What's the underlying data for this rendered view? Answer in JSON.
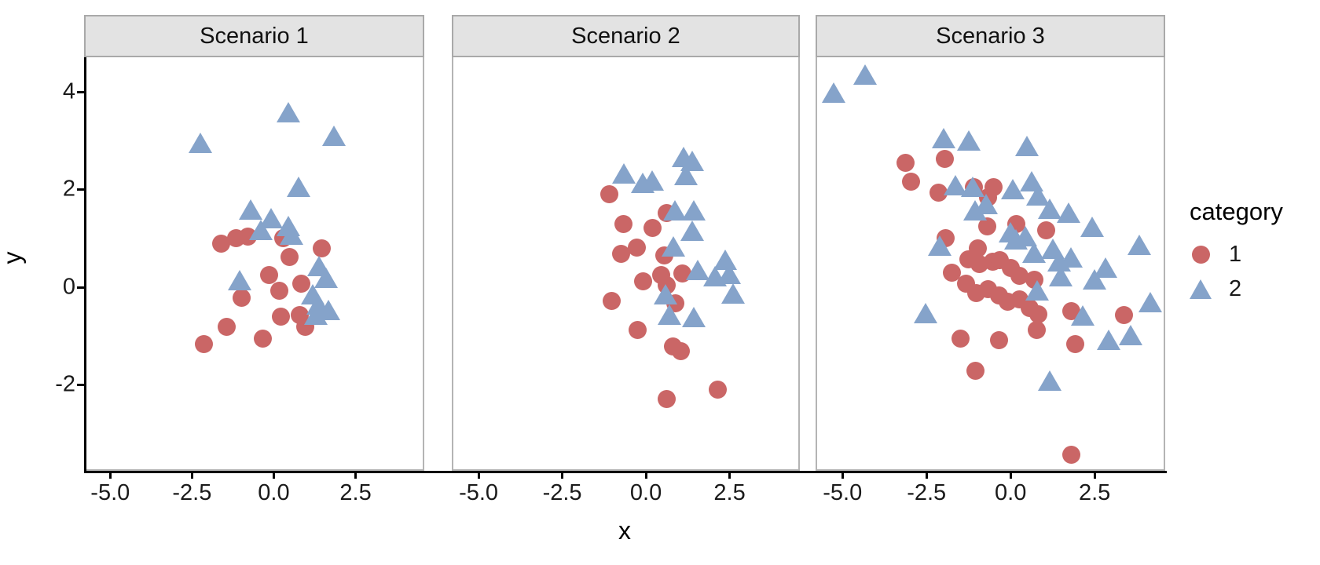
{
  "colors": {
    "category1": "#CA6666",
    "category2": "#85A3CA",
    "strip_background": "#e3e3e3",
    "strip_border": "#a9a9a9",
    "panel_border": "#b4b4b4",
    "axis_line": "#000000"
  },
  "legend": {
    "title": "category",
    "items": [
      {
        "label": "1",
        "marker": "circle",
        "color": "#CA6666"
      },
      {
        "label": "2",
        "marker": "triangle",
        "color": "#85A3CA"
      }
    ]
  },
  "chart_data": {
    "type": "scatter",
    "xlabel": "x",
    "ylabel": "y",
    "grid": false,
    "legend_position": "right",
    "x_range": [
      -5.8,
      4.6
    ],
    "y_range": [
      -3.8,
      4.7
    ],
    "x_ticks": [
      -5.0,
      -2.5,
      0.0,
      2.5
    ],
    "x_tick_labels": [
      "-5.0",
      "-2.5",
      "0.0",
      "2.5"
    ],
    "y_ticks": [
      4,
      2,
      0,
      -2
    ],
    "y_tick_labels": [
      "4",
      "2",
      "0",
      "-2"
    ],
    "facets": [
      {
        "label": "Scenario 1",
        "series": [
          {
            "name": "1",
            "marker": "circle",
            "color": "#CA6666",
            "points": [
              [
                -1.63,
                0.86
              ],
              [
                -1.16,
                0.97
              ],
              [
                -0.8,
                1.0
              ],
              [
                0.3,
                0.97
              ],
              [
                0.5,
                0.58
              ],
              [
                1.48,
                0.75
              ],
              [
                -0.13,
                0.21
              ],
              [
                0.18,
                -0.11
              ],
              [
                0.85,
                0.03
              ],
              [
                -1.0,
                -0.27
              ],
              [
                0.22,
                -0.65
              ],
              [
                0.81,
                -0.62
              ],
              [
                0.97,
                -0.86
              ],
              [
                -1.44,
                -0.86
              ],
              [
                -0.33,
                -1.1
              ],
              [
                -2.15,
                -1.21
              ]
            ]
          },
          {
            "name": "2",
            "marker": "triangle",
            "color": "#85A3CA",
            "points": [
              [
                0.45,
                3.55
              ],
              [
                1.87,
                3.06
              ],
              [
                -2.25,
                2.92
              ],
              [
                0.78,
                2.02
              ],
              [
                -0.7,
                1.55
              ],
              [
                -0.4,
                1.13
              ],
              [
                -0.09,
                1.37
              ],
              [
                0.45,
                1.21
              ],
              [
                0.54,
                1.02
              ],
              [
                -1.04,
                0.08
              ],
              [
                1.4,
                0.37
              ],
              [
                1.61,
                0.13
              ],
              [
                1.21,
                -0.21
              ],
              [
                1.37,
                -0.42
              ],
              [
                1.68,
                -0.53
              ],
              [
                1.3,
                -0.62
              ]
            ]
          }
        ]
      },
      {
        "label": "Scenario 2",
        "series": [
          {
            "name": "1",
            "marker": "circle",
            "color": "#CA6666",
            "points": [
              [
                -1.1,
                1.88
              ],
              [
                -0.67,
                1.26
              ],
              [
                0.2,
                1.18
              ],
              [
                0.63,
                1.48
              ],
              [
                -0.75,
                0.65
              ],
              [
                -0.28,
                0.78
              ],
              [
                0.55,
                0.62
              ],
              [
                -0.08,
                0.08
              ],
              [
                0.47,
                0.21
              ],
              [
                1.1,
                0.24
              ],
              [
                0.63,
                0.0
              ],
              [
                -1.03,
                -0.32
              ],
              [
                0.9,
                -0.38
              ],
              [
                -0.24,
                -0.92
              ],
              [
                0.83,
                -1.26
              ],
              [
                1.06,
                -1.37
              ],
              [
                0.63,
                -2.35
              ],
              [
                2.17,
                -2.15
              ]
            ]
          },
          {
            "name": "2",
            "marker": "triangle",
            "color": "#85A3CA",
            "points": [
              [
                1.13,
                2.63
              ],
              [
                1.4,
                2.55
              ],
              [
                -0.67,
                2.28
              ],
              [
                -0.08,
                2.1
              ],
              [
                0.2,
                2.15
              ],
              [
                1.22,
                2.26
              ],
              [
                0.87,
                1.53
              ],
              [
                1.46,
                1.53
              ],
              [
                1.4,
                1.1
              ],
              [
                0.83,
                0.78
              ],
              [
                2.4,
                0.51
              ],
              [
                1.57,
                0.3
              ],
              [
                2.52,
                0.21
              ],
              [
                2.09,
                0.16
              ],
              [
                0.59,
                -0.21
              ],
              [
                2.64,
                -0.19
              ],
              [
                0.71,
                -0.62
              ],
              [
                1.46,
                -0.68
              ]
            ]
          }
        ]
      },
      {
        "label": "Scenario 3",
        "series": [
          {
            "name": "1",
            "marker": "circle",
            "color": "#CA6666",
            "points": [
              [
                -3.14,
                2.53
              ],
              [
                -1.96,
                2.61
              ],
              [
                -2.98,
                2.13
              ],
              [
                -2.15,
                1.9
              ],
              [
                -1.09,
                2.02
              ],
              [
                -0.5,
                2.02
              ],
              [
                -0.66,
                1.81
              ],
              [
                -1.95,
                0.97
              ],
              [
                -0.69,
                1.21
              ],
              [
                0.17,
                1.26
              ],
              [
                1.08,
                1.13
              ],
              [
                -0.97,
                0.76
              ],
              [
                -1.75,
                0.26
              ],
              [
                -1.25,
                0.53
              ],
              [
                -0.92,
                0.44
              ],
              [
                -0.54,
                0.48
              ],
              [
                -0.31,
                0.52
              ],
              [
                0.02,
                0.35
              ],
              [
                0.28,
                0.19
              ],
              [
                0.73,
                0.11
              ],
              [
                -1.32,
                0.03
              ],
              [
                -1.02,
                -0.16
              ],
              [
                -0.66,
                -0.08
              ],
              [
                -0.33,
                -0.21
              ],
              [
                -0.07,
                -0.35
              ],
              [
                0.28,
                -0.29
              ],
              [
                0.57,
                -0.48
              ],
              [
                0.85,
                -0.6
              ],
              [
                1.82,
                -0.53
              ],
              [
                3.4,
                -0.62
              ],
              [
                -1.5,
                -1.11
              ],
              [
                -0.33,
                -1.13
              ],
              [
                0.8,
                -0.92
              ],
              [
                1.94,
                -1.21
              ],
              [
                -1.04,
                -1.77
              ],
              [
                1.82,
                -3.5
              ]
            ]
          },
          {
            "name": "2",
            "marker": "triangle",
            "color": "#85A3CA",
            "points": [
              [
                -5.3,
                3.95
              ],
              [
                -4.35,
                4.33
              ],
              [
                -2.0,
                3.02
              ],
              [
                -1.25,
                2.97
              ],
              [
                0.5,
                2.86
              ],
              [
                -1.65,
                2.05
              ],
              [
                -1.13,
                2.01
              ],
              [
                0.63,
                2.12
              ],
              [
                0.07,
                1.96
              ],
              [
                0.82,
                1.84
              ],
              [
                -1.06,
                1.53
              ],
              [
                -0.74,
                1.66
              ],
              [
                -2.12,
                0.8
              ],
              [
                0.0,
                1.08
              ],
              [
                0.16,
                0.92
              ],
              [
                0.45,
                1.0
              ],
              [
                1.18,
                1.56
              ],
              [
                1.74,
                1.48
              ],
              [
                2.46,
                1.18
              ],
              [
                3.86,
                0.82
              ],
              [
                0.7,
                0.65
              ],
              [
                1.27,
                0.73
              ],
              [
                1.46,
                0.48
              ],
              [
                1.81,
                0.56
              ],
              [
                2.86,
                0.34
              ],
              [
                2.52,
                0.1
              ],
              [
                1.5,
                0.16
              ],
              [
                0.8,
                -0.13
              ],
              [
                4.21,
                -0.37
              ],
              [
                2.16,
                -0.65
              ],
              [
                -2.54,
                -0.6
              ],
              [
                2.94,
                -1.14
              ],
              [
                3.62,
                -1.05
              ],
              [
                1.18,
                -1.98
              ]
            ]
          }
        ]
      }
    ]
  }
}
